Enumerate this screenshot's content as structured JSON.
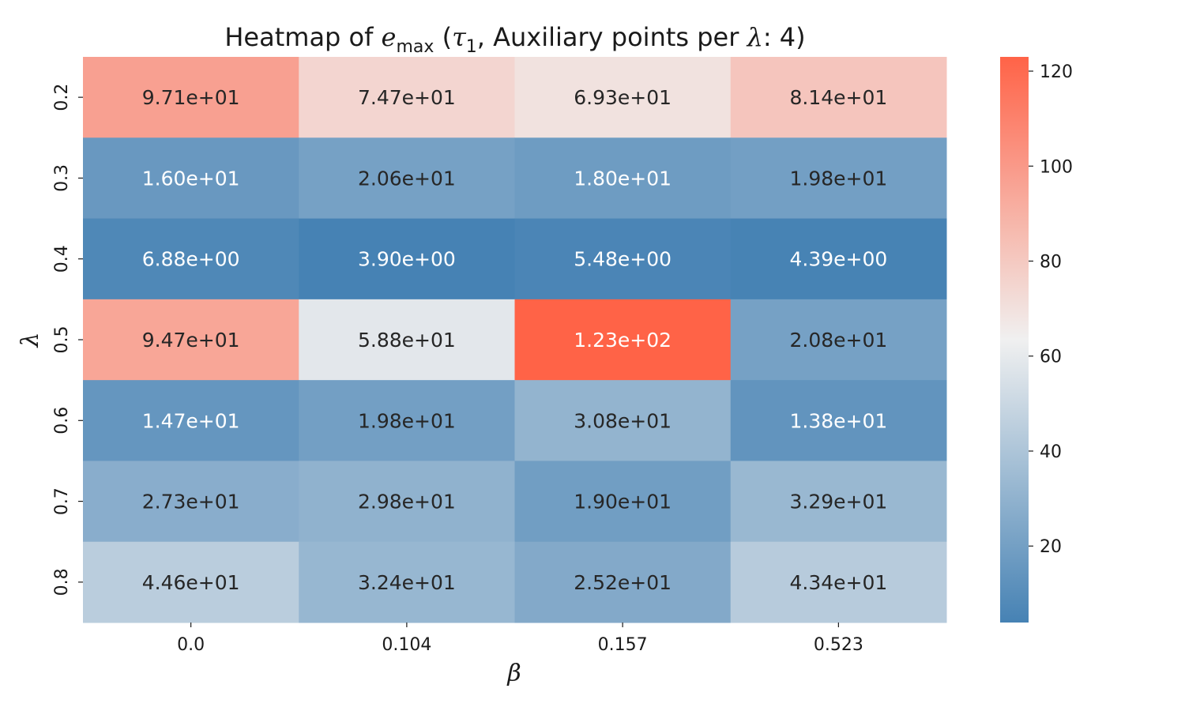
{
  "chart_data": {
    "type": "heatmap",
    "title": {
      "prefix": "Heatmap of ",
      "symbol": "e",
      "subscript": "max",
      "middle": " (",
      "tau": "τ",
      "tau_sub": "1",
      "suffix_a": ", Auxiliary points per ",
      "lambda": "λ",
      "suffix_b": ": 4)"
    },
    "xlabel": "β",
    "ylabel": "λ",
    "x_categories": [
      "0.0",
      "0.104",
      "0.157",
      "0.523"
    ],
    "y_categories": [
      "0.2",
      "0.3",
      "0.4",
      "0.5",
      "0.6",
      "0.7",
      "0.8"
    ],
    "values": [
      [
        97.1,
        74.7,
        69.3,
        81.4
      ],
      [
        16.0,
        20.6,
        18.0,
        19.8
      ],
      [
        6.88,
        3.9,
        5.48,
        4.39
      ],
      [
        94.7,
        58.8,
        123.0,
        20.8
      ],
      [
        14.7,
        19.8,
        30.8,
        13.8
      ],
      [
        27.3,
        29.8,
        19.0,
        32.9
      ],
      [
        44.6,
        32.4,
        25.2,
        43.4
      ]
    ],
    "cell_labels": [
      [
        "9.71e+01",
        "7.47e+01",
        "6.93e+01",
        "8.14e+01"
      ],
      [
        "1.60e+01",
        "2.06e+01",
        "1.80e+01",
        "1.98e+01"
      ],
      [
        "6.88e+00",
        "3.90e+00",
        "5.48e+00",
        "4.39e+00"
      ],
      [
        "9.47e+01",
        "5.88e+01",
        "1.23e+02",
        "2.08e+01"
      ],
      [
        "1.47e+01",
        "1.98e+01",
        "3.08e+01",
        "1.38e+01"
      ],
      [
        "2.73e+01",
        "2.98e+01",
        "1.90e+01",
        "3.29e+01"
      ],
      [
        "4.46e+01",
        "3.24e+01",
        "2.52e+01",
        "4.34e+01"
      ]
    ],
    "colorbar": {
      "vmin": 3.9,
      "vmax": 123.0,
      "ticks": [
        20,
        40,
        60,
        80,
        100,
        120
      ],
      "tick_labels": [
        "20",
        "40",
        "60",
        "80",
        "100",
        "120"
      ]
    },
    "colormap": {
      "low": "#4682b4",
      "mid": "#f0f0f0",
      "high": "#ff6347",
      "mid_value": 63.45
    },
    "grid": false,
    "legend": "colorbar-right"
  }
}
